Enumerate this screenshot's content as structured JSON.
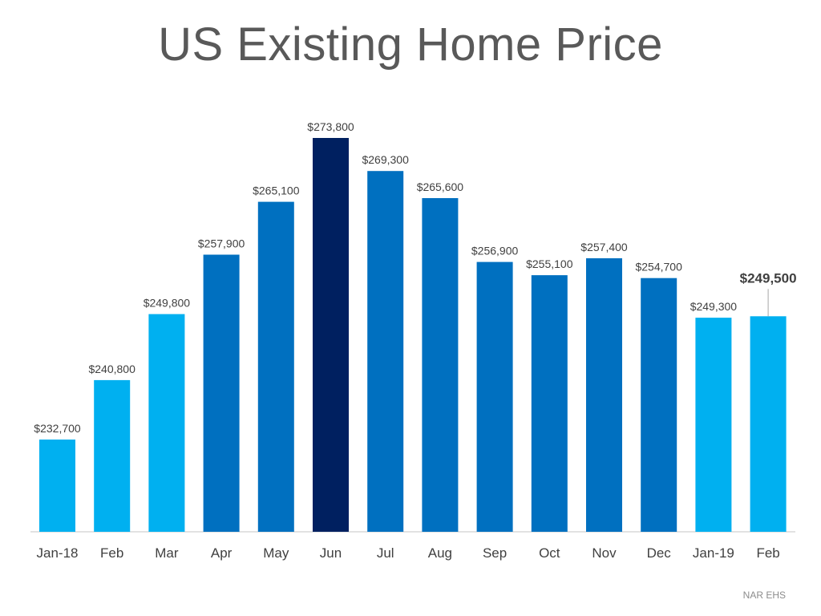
{
  "title": "US Existing Home Price",
  "source": "NAR EHS",
  "chart_data": {
    "type": "bar",
    "title": "US Existing Home Price",
    "xlabel": "",
    "ylabel": "",
    "categories": [
      "Jan-18",
      "Feb",
      "Mar",
      "Apr",
      "May",
      "Jun",
      "Jul",
      "Aug",
      "Sep",
      "Oct",
      "Nov",
      "Dec",
      "Jan-19",
      "Feb"
    ],
    "values": [
      232700,
      240800,
      249800,
      257900,
      265100,
      273800,
      269300,
      265600,
      256900,
      255100,
      257400,
      254700,
      249300,
      249500
    ],
    "value_labels": [
      "$232,700",
      "$240,800",
      "$249,800",
      "$257,900",
      "$265,100",
      "$273,800",
      "$269,300",
      "$265,600",
      "$256,900",
      "$255,100",
      "$257,400",
      "$254,700",
      "$249,300",
      "$249,500"
    ],
    "bar_colors": [
      "#00b0f0",
      "#00b0f0",
      "#00b0f0",
      "#0070c0",
      "#0070c0",
      "#002060",
      "#0070c0",
      "#0070c0",
      "#0070c0",
      "#0070c0",
      "#0070c0",
      "#0070c0",
      "#00b0f0",
      "#00b0f0"
    ],
    "highlight_index": 13,
    "ylim": [
      200000,
      280000
    ],
    "grid": false,
    "legend": "none",
    "colors": {
      "axis_line": "#d9d9d9",
      "label_text": "#404040",
      "callout_line": "#a6a6a6"
    }
  }
}
